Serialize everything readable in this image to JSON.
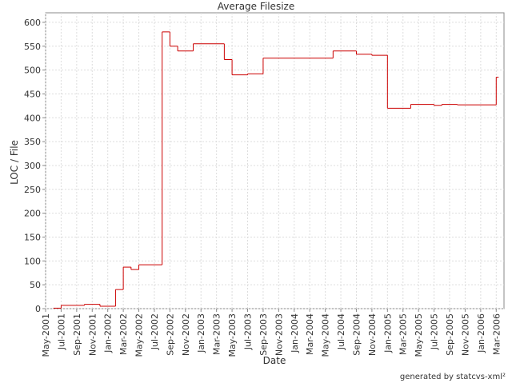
{
  "chart_data": {
    "type": "line",
    "title": "Average Filesize",
    "x_label": "Date",
    "y_label": "LOC / File",
    "footer": "generated by statcvs-xml²",
    "x": [
      "2001-06",
      "2001-07",
      "2001-10",
      "2001-12",
      "2002-02",
      "2002-03",
      "2002-04",
      "2002-05",
      "2002-08",
      "2002-09",
      "2002-10",
      "2002-12",
      "2003-04",
      "2003-05",
      "2003-07",
      "2003-09",
      "2004-06",
      "2004-09",
      "2004-11",
      "2005-01",
      "2005-04",
      "2005-07",
      "2005-08",
      "2005-10",
      "2006-03"
    ],
    "series": [
      {
        "name": "Average Filesize",
        "color": "#cc0000",
        "values": [
          1,
          7,
          9,
          5,
          40,
          87,
          82,
          92,
          580,
          550,
          540,
          555,
          522,
          490,
          492,
          525,
          540,
          533,
          531,
          420,
          428,
          426,
          428,
          427,
          485
        ]
      }
    ],
    "xlim": [
      "2001-05",
      "2006-04"
    ],
    "ylim": [
      0,
      620
    ],
    "yticks": [
      0,
      50,
      100,
      150,
      200,
      250,
      300,
      350,
      400,
      450,
      500,
      550,
      600
    ],
    "xticks": [
      {
        "value": "2001-05",
        "label": "May-2001"
      },
      {
        "value": "2001-07",
        "label": "Jul-2001"
      },
      {
        "value": "2001-09",
        "label": "Sep-2001"
      },
      {
        "value": "2001-11",
        "label": "Nov-2001"
      },
      {
        "value": "2002-01",
        "label": "Jan-2002"
      },
      {
        "value": "2002-03",
        "label": "Mar-2002"
      },
      {
        "value": "2002-05",
        "label": "May-2002"
      },
      {
        "value": "2002-07",
        "label": "Jul-2002"
      },
      {
        "value": "2002-09",
        "label": "Sep-2002"
      },
      {
        "value": "2002-11",
        "label": "Nov-2002"
      },
      {
        "value": "2003-01",
        "label": "Jan-2003"
      },
      {
        "value": "2003-03",
        "label": "Mar-2003"
      },
      {
        "value": "2003-05",
        "label": "May-2003"
      },
      {
        "value": "2003-07",
        "label": "Jul-2003"
      },
      {
        "value": "2003-09",
        "label": "Sep-2003"
      },
      {
        "value": "2003-11",
        "label": "Nov-2003"
      },
      {
        "value": "2004-01",
        "label": "Jan-2004"
      },
      {
        "value": "2004-03",
        "label": "Mar-2004"
      },
      {
        "value": "2004-05",
        "label": "May-2004"
      },
      {
        "value": "2004-07",
        "label": "Jul-2004"
      },
      {
        "value": "2004-09",
        "label": "Sep-2004"
      },
      {
        "value": "2004-11",
        "label": "Nov-2004"
      },
      {
        "value": "2005-01",
        "label": "Jan-2005"
      },
      {
        "value": "2005-03",
        "label": "Mar-2005"
      },
      {
        "value": "2005-05",
        "label": "May-2005"
      },
      {
        "value": "2005-07",
        "label": "Jul-2005"
      },
      {
        "value": "2005-09",
        "label": "Sep-2005"
      },
      {
        "value": "2005-11",
        "label": "Nov-2005"
      },
      {
        "value": "2006-01",
        "label": "Jan-2006"
      },
      {
        "value": "2006-03",
        "label": "Mar-2006"
      }
    ],
    "grid": true
  }
}
